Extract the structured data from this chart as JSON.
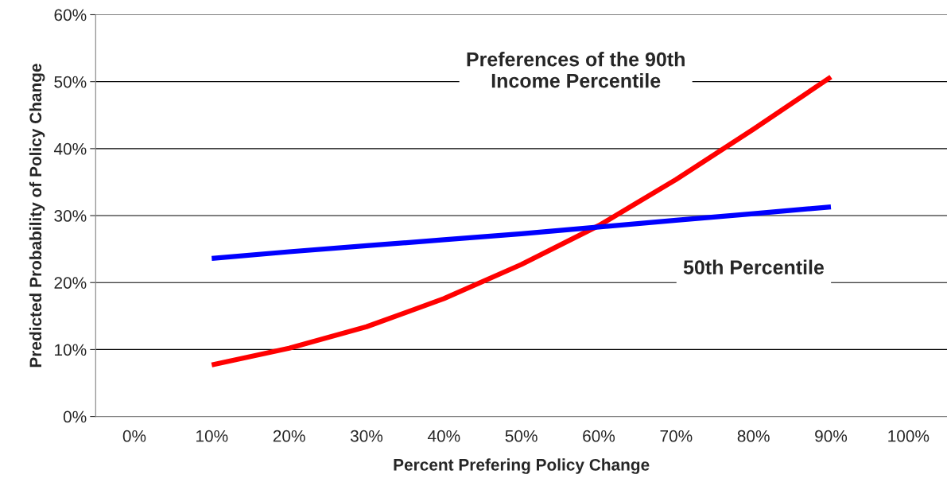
{
  "chart_data": {
    "type": "line",
    "xlabel": "Percent Prefering Policy Change",
    "ylabel": "Predicted Probability of Policy Change",
    "x": [
      10,
      20,
      30,
      40,
      50,
      60,
      70,
      80,
      90
    ],
    "series": [
      {
        "color": "#ff0000",
        "values": [
          7.7,
          10.2,
          13.4,
          17.6,
          22.7,
          28.5,
          35.4,
          42.9,
          50.7
        ]
      },
      {
        "color": "#0000ff",
        "values": [
          23.6,
          24.6,
          25.5,
          26.4,
          27.3,
          28.3,
          29.3,
          30.3,
          31.3
        ]
      }
    ],
    "xlim": [
      -5,
      105
    ],
    "xticks": [
      {
        "value": 0,
        "label": "0%"
      },
      {
        "value": 10,
        "label": "10%"
      },
      {
        "value": 20,
        "label": "20%"
      },
      {
        "value": 30,
        "label": "30%"
      },
      {
        "value": 40,
        "label": "40%"
      },
      {
        "value": 50,
        "label": "50%"
      },
      {
        "value": 60,
        "label": "60%"
      },
      {
        "value": 70,
        "label": "70%"
      },
      {
        "value": 80,
        "label": "80%"
      },
      {
        "value": 90,
        "label": "90%"
      },
      {
        "value": 100,
        "label": "100%"
      }
    ],
    "ylim": [
      0,
      60
    ],
    "yticks": [
      {
        "value": 0,
        "label": "0%"
      },
      {
        "value": 10,
        "label": "10%"
      },
      {
        "value": 20,
        "label": "20%"
      },
      {
        "value": 30,
        "label": "30%"
      },
      {
        "value": 40,
        "label": "40%"
      },
      {
        "value": 50,
        "label": "50%"
      },
      {
        "value": 60,
        "label": "60%"
      }
    ],
    "grid": "y",
    "legend": false,
    "marker": "none",
    "line_style": "solid",
    "annotations": [
      "Preferences of the 90th\nIncome Percentile",
      "50th Percentile"
    ]
  }
}
